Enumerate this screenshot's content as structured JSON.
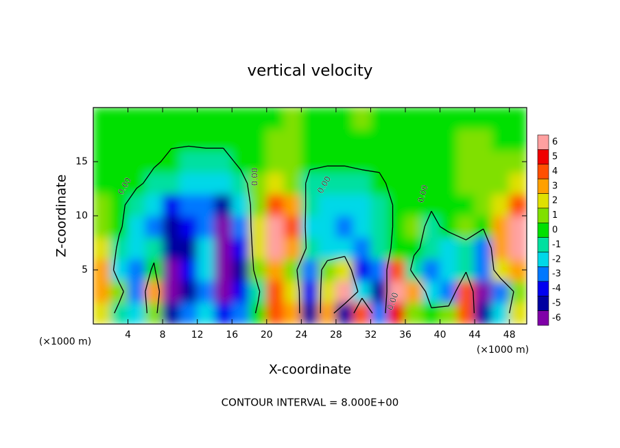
{
  "chart_data": {
    "type": "contour",
    "title": "vertical velocity",
    "xlabel": "X-coordinate",
    "ylabel": "Z-coordinate",
    "x_units": "(×1000 m)",
    "y_units": "(×1000 m)",
    "footer": "CONTOUR INTERVAL = 8.000E+00",
    "xlim": [
      0,
      50
    ],
    "xticks": [
      4,
      8,
      12,
      16,
      20,
      24,
      28,
      32,
      36,
      40,
      44,
      48
    ],
    "ylim": [
      0,
      20
    ],
    "yticks": [
      5,
      10,
      15
    ],
    "x": [
      1,
      3,
      5,
      7,
      9,
      11,
      13,
      15,
      17,
      19,
      21,
      23,
      25,
      27,
      29,
      31,
      33,
      35,
      37,
      39,
      41,
      43,
      45,
      47,
      49
    ],
    "z": [
      1,
      3,
      5,
      7,
      9,
      11,
      13,
      15,
      17,
      19
    ],
    "values": [
      [
        2.5,
        -1.0,
        -1.5,
        1.0,
        -4.5,
        -3.0,
        -2.0,
        -4.0,
        -3.0,
        0.5,
        4.5,
        3.0,
        -4.5,
        3.0,
        -5.0,
        4.5,
        -3.0,
        5.5,
        1.0,
        0.5,
        1.5,
        4.0,
        -4.5,
        -2.0,
        2.0
      ],
      [
        3.5,
        1.0,
        -3.0,
        3.0,
        -6.5,
        -4.5,
        -2.5,
        -6.5,
        -4.0,
        -0.5,
        4.5,
        2.5,
        -4.0,
        2.5,
        6.5,
        -2.0,
        -5.0,
        6.5,
        3.0,
        -1.5,
        -3.0,
        4.5,
        -6.5,
        -3.0,
        1.0
      ],
      [
        3.0,
        -1.5,
        -2.5,
        0.5,
        -6.5,
        -4.0,
        -2.0,
        -6.5,
        -4.5,
        1.5,
        3.5,
        1.0,
        -3.0,
        1.5,
        2.5,
        -4.0,
        -3.0,
        4.0,
        -1.0,
        -2.5,
        -2.0,
        -0.5,
        -3.0,
        2.0,
        3.0
      ],
      [
        2.5,
        -0.5,
        -1.5,
        -1.0,
        -5.0,
        -4.5,
        -2.0,
        -6.5,
        -4.0,
        2.0,
        6.5,
        3.5,
        -1.0,
        -2.0,
        -1.5,
        -3.0,
        -1.0,
        0.5,
        0.5,
        -1.0,
        -1.5,
        -0.5,
        -2.5,
        3.0,
        6.5
      ],
      [
        1.5,
        0.3,
        -1.5,
        -2.5,
        -4.5,
        -4.0,
        -2.5,
        -5.5,
        -3.0,
        2.0,
        6.5,
        4.0,
        -1.5,
        -2.0,
        -2.5,
        -2.0,
        -1.0,
        0.3,
        0.8,
        -0.5,
        0.5,
        0.8,
        0.3,
        3.0,
        6.5
      ],
      [
        0.8,
        0.5,
        -1.0,
        -2.0,
        -3.5,
        -3.0,
        -2.5,
        -4.5,
        -2.0,
        1.5,
        4.5,
        3.0,
        -1.0,
        -1.5,
        -2.0,
        -1.5,
        -1.0,
        0.3,
        0.5,
        0.2,
        0.3,
        0.5,
        0.8,
        2.0,
        4.5
      ],
      [
        0.5,
        0.5,
        0.3,
        -0.5,
        -1.2,
        -1.5,
        -1.5,
        -2.0,
        -0.5,
        0.8,
        2.5,
        1.5,
        -0.5,
        -0.8,
        -0.8,
        -0.5,
        -0.3,
        0.5,
        0.5,
        0.3,
        0.5,
        1.0,
        1.5,
        1.5,
        2.5
      ],
      [
        0.2,
        0.5,
        0.5,
        0.2,
        -0.3,
        -0.5,
        -0.5,
        -0.5,
        0.3,
        0.5,
        1.0,
        1.2,
        0.3,
        0.2,
        0.2,
        0.3,
        0.3,
        0.5,
        0.5,
        0.5,
        0.5,
        1.0,
        1.0,
        0.8,
        0.8
      ],
      [
        0.3,
        0.5,
        0.5,
        0.3,
        0.2,
        0.2,
        0.3,
        0.3,
        0.5,
        0.5,
        0.8,
        1.0,
        0.5,
        0.5,
        0.3,
        0.5,
        0.5,
        0.5,
        0.5,
        0.5,
        0.5,
        0.8,
        0.8,
        0.5,
        0.5
      ],
      [
        0.5,
        0.5,
        0.5,
        0.5,
        0.5,
        0.3,
        0.3,
        0.5,
        0.5,
        0.5,
        0.5,
        0.8,
        0.5,
        0.5,
        0.5,
        0.8,
        0.5,
        0.5,
        0.5,
        0.3,
        0.3,
        0.5,
        0.5,
        0.5,
        0.5
      ]
    ],
    "colorbar": {
      "ticks": [
        -6,
        -5,
        -4,
        -3,
        -2,
        -1,
        0,
        1,
        2,
        3,
        4,
        5,
        6
      ],
      "colors": [
        "#8000a8",
        "#0000a0",
        "#0000f0",
        "#0078ff",
        "#00d8e8",
        "#00e0a0",
        "#00e000",
        "#80e000",
        "#e0e000",
        "#ffa000",
        "#ff5000",
        "#f00000",
        "#ffa0a0"
      ],
      "out_of_range_color": "#ffffff"
    },
    "contour_labels": [
      {
        "value": 0,
        "label": "0.00"
      },
      {
        "value": 0,
        "label": "0.00"
      },
      {
        "value": 0,
        "label": "0.00"
      },
      {
        "value": 0,
        "label": "0.00"
      },
      {
        "value": 0,
        "label": "0.00"
      }
    ]
  }
}
